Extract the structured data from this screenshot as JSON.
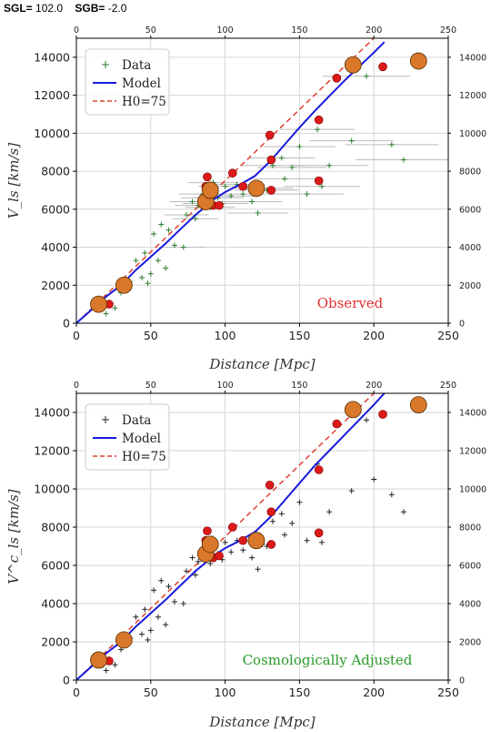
{
  "header": {
    "sgl_label": "SGL=",
    "sgl_value": "102.0",
    "sgb_label": "SGB=",
    "sgb_value": "-2.0"
  },
  "colors": {
    "model": "#1a1adc",
    "h0": "#e04030",
    "observed_annot": "#e03030",
    "adjusted_annot": "#2a9a2a",
    "data_top": "#2e7d2e",
    "data_bottom": "#222222",
    "group_fill": "#d9772b",
    "galaxy_fill": "#dd1a1a"
  },
  "chart_data": [
    {
      "type": "scatter",
      "panel": "top",
      "xlabel": "Distance [Mpc]",
      "ylabel": "V_ls [km/s]",
      "annotation": "Observed",
      "xlim": [
        0,
        250
      ],
      "ylim": [
        0,
        15000
      ],
      "x_ticks": [
        "0",
        "50",
        "100",
        "150",
        "200",
        "250"
      ],
      "y_ticks": [
        "0",
        "2000",
        "4000",
        "6000",
        "8000",
        "10000",
        "12000",
        "14000"
      ],
      "top_ticks": [
        "0",
        "50",
        "100",
        "150",
        "200",
        "250"
      ],
      "right_ticks": [
        "0",
        "2000",
        "4000",
        "6000",
        "8000",
        "10000",
        "12000",
        "14000"
      ],
      "grid": true,
      "legend_position": "top-left",
      "legend": [
        "Data",
        "Model",
        "H0=75"
      ],
      "model_line": [
        [
          0,
          0
        ],
        [
          10,
          700
        ],
        [
          20,
          1400
        ],
        [
          30,
          2000
        ],
        [
          40,
          2800
        ],
        [
          50,
          3500
        ],
        [
          60,
          4200
        ],
        [
          70,
          4950
        ],
        [
          80,
          5700
        ],
        [
          87,
          6150
        ],
        [
          92,
          6500
        ],
        [
          100,
          6900
        ],
        [
          110,
          7300
        ],
        [
          120,
          7750
        ],
        [
          130,
          8500
        ],
        [
          140,
          9400
        ],
        [
          150,
          10300
        ],
        [
          160,
          11150
        ],
        [
          170,
          11950
        ],
        [
          180,
          12750
        ],
        [
          190,
          13500
        ],
        [
          200,
          14250
        ],
        [
          207,
          14800
        ]
      ],
      "h0_line": [
        [
          0,
          0
        ],
        [
          200,
          15000
        ]
      ],
      "data_points": [
        [
          15,
          1000
        ],
        [
          18,
          800
        ],
        [
          20,
          500
        ],
        [
          22,
          1100
        ],
        [
          26,
          800
        ],
        [
          30,
          1600
        ],
        [
          33,
          2000
        ],
        [
          36,
          2200
        ],
        [
          40,
          3300
        ],
        [
          44,
          2400
        ],
        [
          46,
          3700
        ],
        [
          48,
          2100
        ],
        [
          50,
          2600
        ],
        [
          52,
          4700
        ],
        [
          55,
          3300
        ],
        [
          57,
          5200
        ],
        [
          60,
          2900
        ],
        [
          62,
          4900
        ],
        [
          66,
          4100
        ],
        [
          72,
          4000
        ],
        [
          74,
          5700
        ],
        [
          78,
          6400
        ],
        [
          80,
          5500
        ],
        [
          82,
          6200
        ],
        [
          85,
          6800
        ],
        [
          87,
          6600
        ],
        [
          88,
          6300
        ],
        [
          90,
          6100
        ],
        [
          92,
          7400
        ],
        [
          95,
          6600
        ],
        [
          98,
          6300
        ],
        [
          100,
          7200
        ],
        [
          104,
          6700
        ],
        [
          108,
          7300
        ],
        [
          112,
          6800
        ],
        [
          118,
          6400
        ],
        [
          122,
          5800
        ],
        [
          125,
          7100
        ],
        [
          128,
          7000
        ],
        [
          132,
          8300
        ],
        [
          138,
          8700
        ],
        [
          140,
          7600
        ],
        [
          145,
          8200
        ],
        [
          150,
          9300
        ],
        [
          155,
          6800
        ],
        [
          162,
          10200
        ],
        [
          165,
          7200
        ],
        [
          170,
          8300
        ],
        [
          185,
          9600
        ],
        [
          195,
          13000
        ],
        [
          212,
          9400
        ],
        [
          220,
          8600
        ]
      ],
      "galaxies": [
        [
          22,
          1000
        ],
        [
          87,
          7200
        ],
        [
          88,
          7700
        ],
        [
          92,
          6200
        ],
        [
          96,
          6200
        ],
        [
          105,
          7900
        ],
        [
          112,
          7200
        ],
        [
          130,
          9900
        ],
        [
          131,
          7000
        ],
        [
          131,
          8600
        ],
        [
          163,
          10700
        ],
        [
          163,
          7500
        ],
        [
          175,
          12900
        ],
        [
          206,
          13500
        ]
      ],
      "groups": [
        [
          15,
          1000
        ],
        [
          32,
          2000
        ],
        [
          87,
          6400
        ],
        [
          90,
          7000
        ],
        [
          121,
          7100
        ],
        [
          186,
          13600
        ],
        [
          230,
          13800
        ]
      ]
    },
    {
      "type": "scatter",
      "panel": "bottom",
      "xlabel": "Distance [Mpc]",
      "ylabel": "V^c_ls [km/s]",
      "annotation": "Cosmologically Adjusted",
      "xlim": [
        0,
        250
      ],
      "ylim": [
        0,
        15000
      ],
      "x_ticks": [
        "0",
        "50",
        "100",
        "150",
        "200",
        "250"
      ],
      "y_ticks": [
        "0",
        "2000",
        "4000",
        "6000",
        "8000",
        "10000",
        "12000",
        "14000"
      ],
      "top_ticks": [
        "0",
        "50",
        "100",
        "150",
        "200",
        "250"
      ],
      "right_ticks": [
        "0",
        "2000",
        "4000",
        "6000",
        "8000",
        "10000",
        "12000",
        "14000"
      ],
      "grid": true,
      "legend_position": "top-left",
      "legend": [
        "Data",
        "Model",
        "H0=75"
      ],
      "model_line": [
        [
          0,
          0
        ],
        [
          10,
          700
        ],
        [
          20,
          1400
        ],
        [
          30,
          2000
        ],
        [
          40,
          2800
        ],
        [
          50,
          3500
        ],
        [
          60,
          4200
        ],
        [
          70,
          4950
        ],
        [
          80,
          5700
        ],
        [
          87,
          6150
        ],
        [
          92,
          6500
        ],
        [
          100,
          6900
        ],
        [
          110,
          7300
        ],
        [
          120,
          7750
        ],
        [
          130,
          8500
        ],
        [
          140,
          9400
        ],
        [
          150,
          10300
        ],
        [
          160,
          11200
        ],
        [
          170,
          12000
        ],
        [
          180,
          12800
        ],
        [
          190,
          13600
        ],
        [
          200,
          14400
        ],
        [
          207,
          15000
        ]
      ],
      "h0_line": [
        [
          0,
          0
        ],
        [
          200,
          15000
        ]
      ],
      "data_points": [
        [
          15,
          1000
        ],
        [
          18,
          800
        ],
        [
          20,
          500
        ],
        [
          22,
          1100
        ],
        [
          26,
          800
        ],
        [
          30,
          1600
        ],
        [
          33,
          2000
        ],
        [
          36,
          2200
        ],
        [
          40,
          3300
        ],
        [
          44,
          2400
        ],
        [
          46,
          3700
        ],
        [
          48,
          2100
        ],
        [
          50,
          2600
        ],
        [
          52,
          4700
        ],
        [
          55,
          3300
        ],
        [
          57,
          5200
        ],
        [
          60,
          2900
        ],
        [
          62,
          4900
        ],
        [
          66,
          4100
        ],
        [
          72,
          4000
        ],
        [
          74,
          5700
        ],
        [
          78,
          6400
        ],
        [
          80,
          5500
        ],
        [
          82,
          6200
        ],
        [
          85,
          6800
        ],
        [
          87,
          6600
        ],
        [
          88,
          6300
        ],
        [
          90,
          6100
        ],
        [
          92,
          7400
        ],
        [
          95,
          6600
        ],
        [
          98,
          6300
        ],
        [
          100,
          7200
        ],
        [
          104,
          6700
        ],
        [
          108,
          7300
        ],
        [
          112,
          6800
        ],
        [
          118,
          6400
        ],
        [
          122,
          5800
        ],
        [
          125,
          7100
        ],
        [
          128,
          7000
        ],
        [
          132,
          8300
        ],
        [
          138,
          8700
        ],
        [
          140,
          7600
        ],
        [
          145,
          8200
        ],
        [
          150,
          9300
        ],
        [
          155,
          7300
        ],
        [
          162,
          11300
        ],
        [
          165,
          7200
        ],
        [
          170,
          8800
        ],
        [
          185,
          9900
        ],
        [
          195,
          13600
        ],
        [
          200,
          10500
        ],
        [
          212,
          9700
        ],
        [
          220,
          8800
        ]
      ],
      "galaxies": [
        [
          22,
          1000
        ],
        [
          87,
          7300
        ],
        [
          88,
          7800
        ],
        [
          92,
          6400
        ],
        [
          96,
          6500
        ],
        [
          105,
          8000
        ],
        [
          112,
          7300
        ],
        [
          130,
          10200
        ],
        [
          131,
          7100
        ],
        [
          131,
          8800
        ],
        [
          163,
          11000
        ],
        [
          163,
          7700
        ],
        [
          175,
          13400
        ],
        [
          206,
          13900
        ]
      ],
      "groups": [
        [
          15,
          1050
        ],
        [
          32,
          2100
        ],
        [
          87,
          6600
        ],
        [
          90,
          7100
        ],
        [
          121,
          7300
        ],
        [
          186,
          14150
        ],
        [
          230,
          14400
        ]
      ]
    }
  ]
}
